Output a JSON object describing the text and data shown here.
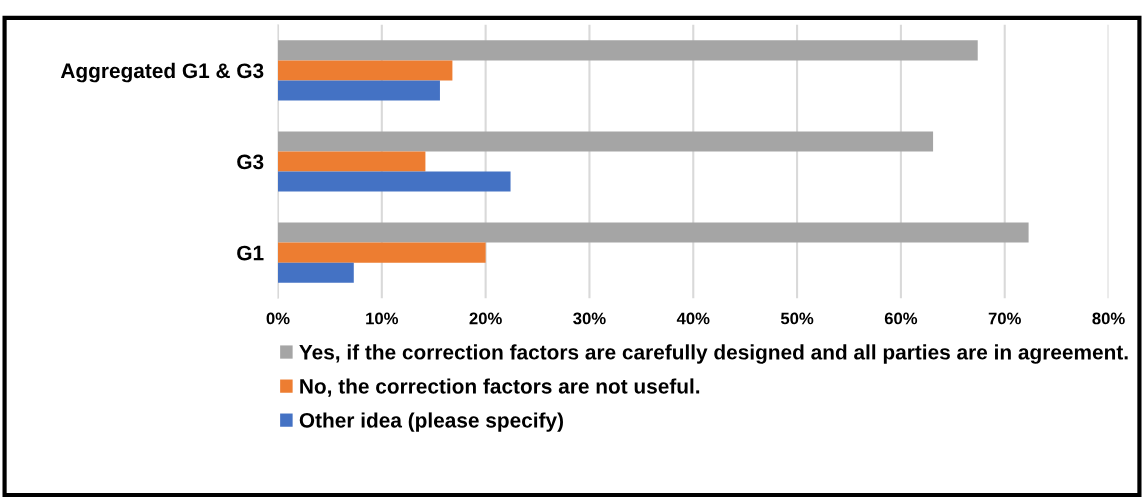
{
  "chart_data": {
    "type": "bar",
    "orientation": "horizontal",
    "categories": [
      "Aggregated G1 & G3",
      "G3",
      "G1"
    ],
    "series": [
      {
        "name": "Yes, if the correction factors are carefully designed and all parties are in agreement.",
        "color": "#a5a5a5",
        "values": [
          67.4,
          63.1,
          72.3
        ]
      },
      {
        "name": "No, the correction factors are not useful.",
        "color": "#ed7d31",
        "values": [
          16.8,
          14.2,
          20.0
        ]
      },
      {
        "name": "Other idea (please specify)",
        "color": "#4472c4",
        "values": [
          15.6,
          22.4,
          7.3
        ]
      }
    ],
    "xlim": [
      0,
      80
    ],
    "xticks": [
      {
        "value": 0,
        "label": "0%"
      },
      {
        "value": 10,
        "label": "10%"
      },
      {
        "value": 20,
        "label": "20%"
      },
      {
        "value": 30,
        "label": "30%"
      },
      {
        "value": 40,
        "label": "40%"
      },
      {
        "value": 50,
        "label": "50%"
      },
      {
        "value": 60,
        "label": "60%"
      },
      {
        "value": 70,
        "label": "70%"
      },
      {
        "value": 80,
        "label": "80%"
      }
    ],
    "grid": "x",
    "legend": "bottom"
  }
}
